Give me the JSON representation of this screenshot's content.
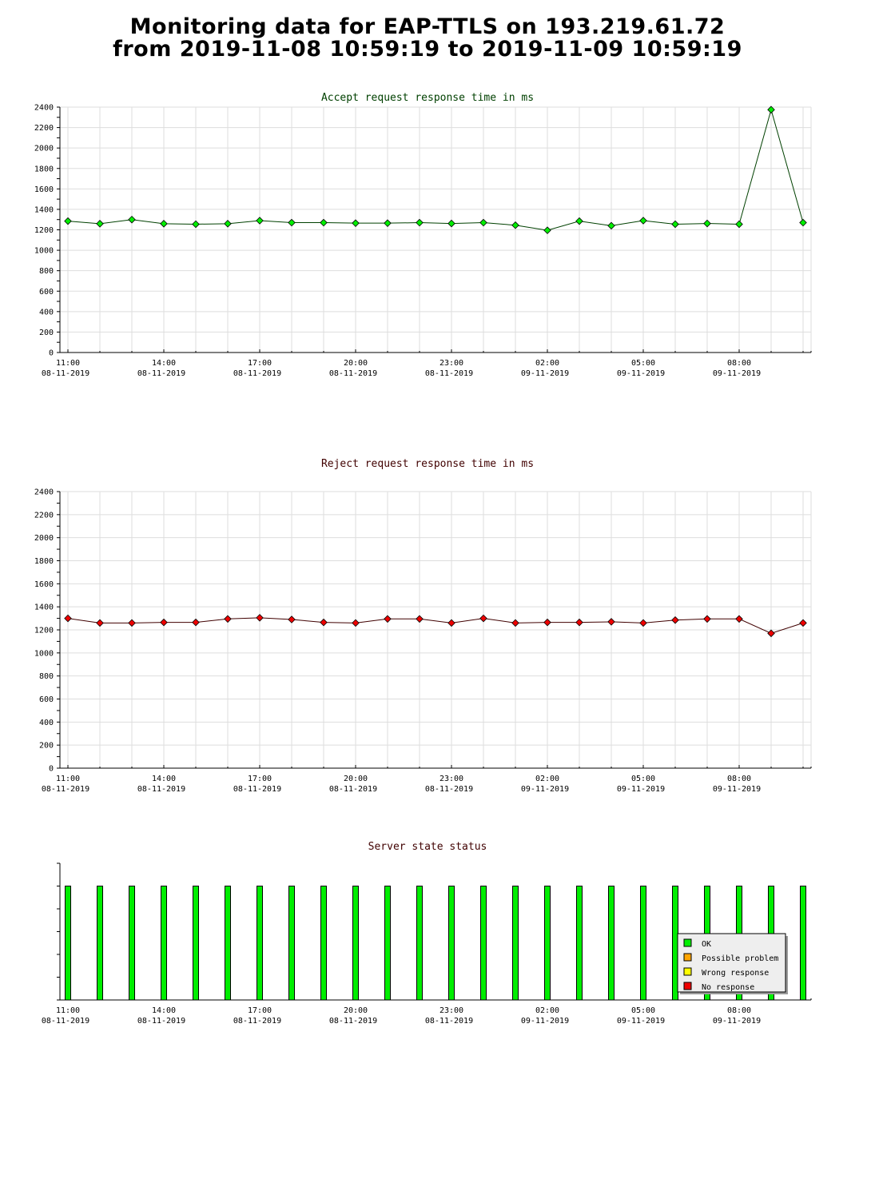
{
  "page": {
    "title_line1": "Monitoring data for EAP-TTLS on 193.219.61.72",
    "title_line2": "from 2019-11-08 10:59:19 to 2019-11-09 10:59:19"
  },
  "chart_data": [
    {
      "type": "line",
      "title": "Accept request response time in ms",
      "title_color": "#004000",
      "line_color": "#004000",
      "marker_color": "#00ee00",
      "ylim": [
        0,
        2400
      ],
      "yticks": [
        "0",
        "200",
        "400",
        "600",
        "800",
        "1000",
        "1200",
        "1400",
        "1600",
        "1800",
        "2000",
        "2200",
        "2400"
      ],
      "xlim": [
        10.75,
        34.25
      ],
      "xticks": [
        {
          "time": "11:00",
          "date": "08-11-2019"
        },
        {
          "time": "14:00",
          "date": "08-11-2019"
        },
        {
          "time": "17:00",
          "date": "08-11-2019"
        },
        {
          "time": "20:00",
          "date": "08-11-2019"
        },
        {
          "time": "23:00",
          "date": "08-11-2019"
        },
        {
          "time": "02:00",
          "date": "09-11-2019"
        },
        {
          "time": "05:00",
          "date": "09-11-2019"
        },
        {
          "time": "08:00",
          "date": "09-11-2019"
        }
      ],
      "grid": true,
      "series": [
        {
          "x": [
            11.0,
            12.0,
            13.0,
            14.0,
            15.0,
            16.0,
            17.0,
            18.0,
            19.0,
            20.0,
            21.0,
            22.0,
            23.0,
            24.0,
            25.0,
            26.0,
            27.0,
            28.0,
            29.0,
            30.0,
            31.0,
            32.0,
            33.0,
            34.0
          ],
          "values": [
            1285,
            1260,
            1300,
            1260,
            1255,
            1260,
            1290,
            1270,
            1270,
            1265,
            1265,
            1270,
            1262,
            1270,
            1245,
            1195,
            1285,
            1240,
            1290,
            1255,
            1262,
            1255,
            2375,
            1270
          ]
        }
      ]
    },
    {
      "type": "line",
      "title": "Reject request response time in ms",
      "title_color": "#400000",
      "line_color": "#400000",
      "marker_color": "#ee0000",
      "ylim": [
        0,
        2400
      ],
      "yticks": [
        "0",
        "200",
        "400",
        "600",
        "800",
        "1000",
        "1200",
        "1400",
        "1600",
        "1800",
        "2000",
        "2200",
        "2400"
      ],
      "xlim": [
        10.75,
        34.25
      ],
      "xticks": [
        {
          "time": "11:00",
          "date": "08-11-2019"
        },
        {
          "time": "14:00",
          "date": "08-11-2019"
        },
        {
          "time": "17:00",
          "date": "08-11-2019"
        },
        {
          "time": "20:00",
          "date": "08-11-2019"
        },
        {
          "time": "23:00",
          "date": "08-11-2019"
        },
        {
          "time": "02:00",
          "date": "09-11-2019"
        },
        {
          "time": "05:00",
          "date": "09-11-2019"
        },
        {
          "time": "08:00",
          "date": "09-11-2019"
        }
      ],
      "grid": true,
      "series": [
        {
          "x": [
            11.0,
            12.0,
            13.0,
            14.0,
            15.0,
            16.0,
            17.0,
            18.0,
            19.0,
            20.0,
            21.0,
            22.0,
            23.0,
            24.0,
            25.0,
            26.0,
            27.0,
            28.0,
            29.0,
            30.0,
            31.0,
            32.0,
            33.0,
            34.0
          ],
          "values": [
            1300,
            1260,
            1260,
            1265,
            1265,
            1295,
            1305,
            1290,
            1265,
            1260,
            1295,
            1295,
            1260,
            1300,
            1260,
            1265,
            1265,
            1270,
            1260,
            1285,
            1295,
            1295,
            1170,
            1260
          ]
        }
      ]
    },
    {
      "type": "bar",
      "title": "Server state status",
      "title_color": "#400000",
      "xlim": [
        10.75,
        34.25
      ],
      "xticks": [
        {
          "time": "11:00",
          "date": "08-11-2019"
        },
        {
          "time": "14:00",
          "date": "08-11-2019"
        },
        {
          "time": "17:00",
          "date": "08-11-2019"
        },
        {
          "time": "20:00",
          "date": "08-11-2019"
        },
        {
          "time": "23:00",
          "date": "08-11-2019"
        },
        {
          "time": "02:00",
          "date": "09-11-2019"
        },
        {
          "time": "05:00",
          "date": "09-11-2019"
        },
        {
          "time": "08:00",
          "date": "09-11-2019"
        }
      ],
      "ylim": [
        0,
        1.2
      ],
      "x": [
        11.0,
        12.0,
        13.0,
        14.0,
        15.0,
        16.0,
        17.0,
        18.0,
        19.0,
        20.0,
        21.0,
        22.0,
        23.0,
        24.0,
        25.0,
        26.0,
        27.0,
        28.0,
        29.0,
        30.0,
        31.0,
        32.0,
        33.0,
        34.0
      ],
      "values": [
        1,
        1,
        1,
        1,
        1,
        1,
        1,
        1,
        1,
        1,
        1,
        1,
        1,
        1,
        1,
        1,
        1,
        1,
        1,
        1,
        1,
        1,
        1,
        1
      ],
      "states": [
        "OK",
        "OK",
        "OK",
        "OK",
        "OK",
        "OK",
        "OK",
        "OK",
        "OK",
        "OK",
        "OK",
        "OK",
        "OK",
        "OK",
        "OK",
        "OK",
        "OK",
        "OK",
        "OK",
        "OK",
        "OK",
        "OK",
        "OK",
        "OK"
      ],
      "legend": {
        "placement": "bottom-right",
        "items": [
          {
            "label": "OK",
            "color": "#00ee00"
          },
          {
            "label": "Possible problem",
            "color": "#ffa500"
          },
          {
            "label": "Wrong response",
            "color": "#ffff00"
          },
          {
            "label": "No response",
            "color": "#ee0000"
          }
        ]
      }
    }
  ]
}
